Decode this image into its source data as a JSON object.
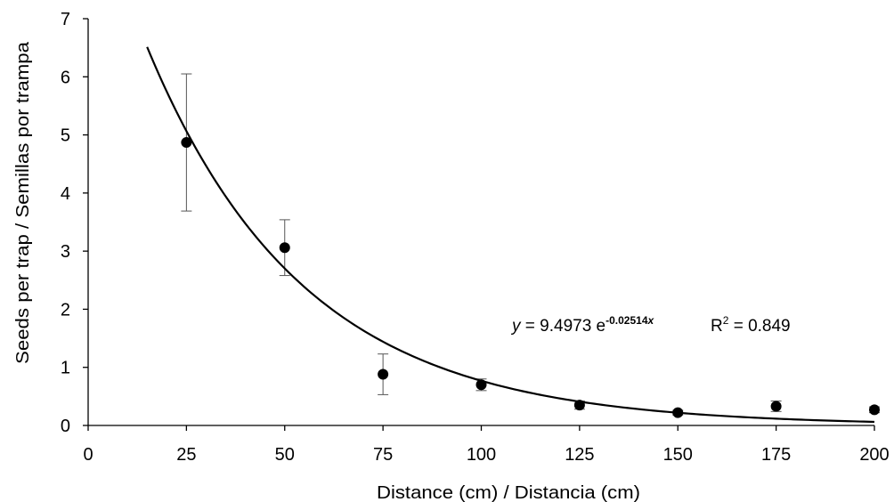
{
  "chart_data": {
    "type": "scatter",
    "title": "",
    "xlabel": "Distance (cm) / Distancia (cm)",
    "ylabel": "Seeds per trap / Semillas por trampa",
    "xlim": [
      0,
      200
    ],
    "ylim": [
      0,
      7
    ],
    "grid": false,
    "x_ticks": [
      "0",
      "25",
      "50",
      "75",
      "100",
      "125",
      "150",
      "175",
      "200"
    ],
    "y_ticks": [
      "0",
      "1",
      "2",
      "3",
      "4",
      "5",
      "6",
      "7"
    ],
    "series": [
      {
        "x": [
          25,
          50,
          75,
          100,
          125,
          150,
          175,
          200
        ],
        "y": [
          4.87,
          3.06,
          0.88,
          0.7,
          0.35,
          0.22,
          0.33,
          0.27
        ],
        "error": [
          1.18,
          0.48,
          0.35,
          0.1,
          0.07,
          0.04,
          0.09,
          0.05
        ]
      }
    ],
    "trendline": {
      "type": "exponential",
      "a": 9.4973,
      "b": -0.02514,
      "x_range": [
        15,
        200
      ]
    },
    "annotation": {
      "y_var": "y",
      "equals": " = 9.4973  e",
      "exponent": "-0.02514",
      "exponent_var": "x",
      "r2_label": "R",
      "r2_sup": "2",
      "r2_value": " = 0.849"
    }
  }
}
